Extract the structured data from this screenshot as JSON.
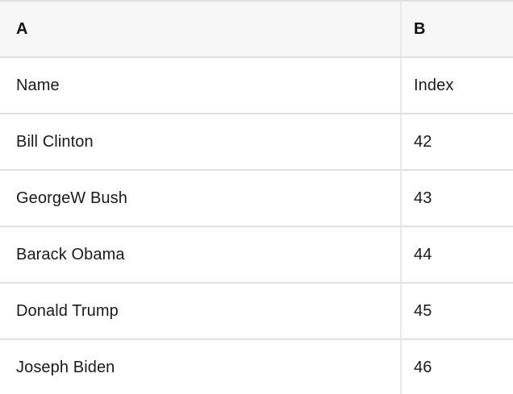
{
  "table": {
    "columns": [
      "A",
      "B"
    ],
    "rows": [
      [
        "Name",
        "Index"
      ],
      [
        "Bill Clinton",
        "42"
      ],
      [
        "GeorgeW Bush",
        "43"
      ],
      [
        "Barack Obama",
        "44"
      ],
      [
        "Donald Trump",
        "45"
      ],
      [
        "Joseph Biden",
        "46"
      ]
    ]
  },
  "colors": {
    "header_bg": "#f7f7f7",
    "border": "#e1e1e1",
    "vborder": "#e9e9e9",
    "text": "#1a1a1a",
    "header_text": "#111111"
  }
}
